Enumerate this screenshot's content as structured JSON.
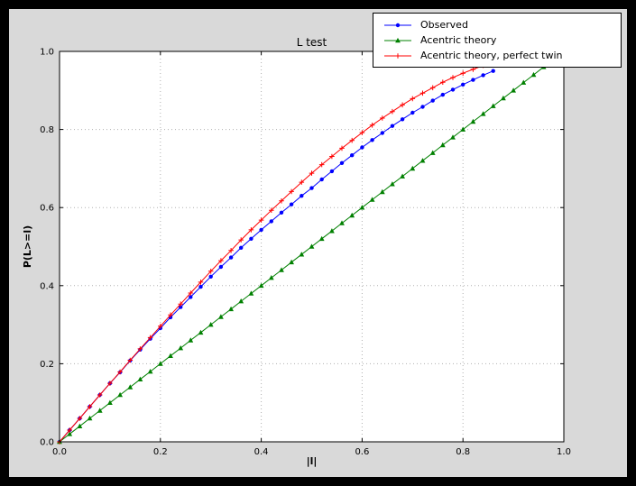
{
  "figure": {
    "title": "L test",
    "xlabel": "|l|",
    "ylabel": "P(L>=l)",
    "bg_outer": "#000000",
    "bg_figure": "#d9d9d9",
    "bg_axes": "#ffffff",
    "grid_color": "#b0b0b0"
  },
  "axes": {
    "xticks": [
      "0.0",
      "0.2",
      "0.4",
      "0.6",
      "0.8",
      "1.0"
    ],
    "yticks": [
      "0.0",
      "0.2",
      "0.4",
      "0.6",
      "0.8",
      "1.0"
    ]
  },
  "chart_data": {
    "type": "line",
    "title": "L test",
    "xlabel": "|l|",
    "ylabel": "P(L>=l)",
    "xlim": [
      0,
      1
    ],
    "ylim": [
      0,
      1
    ],
    "grid": true,
    "grid_style": "dotted",
    "legend_position": "upper right",
    "series": [
      {
        "name": "Observed",
        "color": "#0000ff",
        "marker": "circle",
        "x": [
          0,
          0.02,
          0.04,
          0.06,
          0.08,
          0.1,
          0.12,
          0.14,
          0.16,
          0.18,
          0.2,
          0.22,
          0.24,
          0.26,
          0.28,
          0.3,
          0.32,
          0.34,
          0.36,
          0.38,
          0.4,
          0.42,
          0.44,
          0.46,
          0.48,
          0.5,
          0.52,
          0.54,
          0.56,
          0.58,
          0.6,
          0.62,
          0.64,
          0.66,
          0.68,
          0.7,
          0.72,
          0.74,
          0.76,
          0.78,
          0.8,
          0.82,
          0.84,
          0.86
        ],
        "y": [
          0,
          0.03,
          0.06,
          0.09,
          0.12,
          0.15,
          0.178,
          0.208,
          0.236,
          0.264,
          0.291,
          0.319,
          0.345,
          0.371,
          0.397,
          0.423,
          0.448,
          0.472,
          0.497,
          0.52,
          0.543,
          0.565,
          0.587,
          0.608,
          0.63,
          0.65,
          0.672,
          0.693,
          0.714,
          0.734,
          0.754,
          0.773,
          0.791,
          0.809,
          0.826,
          0.843,
          0.858,
          0.874,
          0.889,
          0.902,
          0.915,
          0.927,
          0.939,
          0.95
        ]
      },
      {
        "name": "Acentric theory",
        "color": "#008000",
        "marker": "triangle_up",
        "x": [
          0,
          0.02,
          0.04,
          0.06,
          0.08,
          0.1,
          0.12,
          0.14,
          0.16,
          0.18,
          0.2,
          0.22,
          0.24,
          0.26,
          0.28,
          0.3,
          0.32,
          0.34,
          0.36,
          0.38,
          0.4,
          0.42,
          0.44,
          0.46,
          0.48,
          0.5,
          0.52,
          0.54,
          0.56,
          0.58,
          0.6,
          0.62,
          0.64,
          0.66,
          0.68,
          0.7,
          0.72,
          0.74,
          0.76,
          0.78,
          0.8,
          0.82,
          0.84,
          0.86,
          0.88,
          0.9,
          0.92,
          0.94,
          0.96
        ],
        "y": [
          0,
          0.02,
          0.04,
          0.06,
          0.08,
          0.1,
          0.12,
          0.14,
          0.16,
          0.18,
          0.2,
          0.22,
          0.24,
          0.26,
          0.28,
          0.3,
          0.32,
          0.34,
          0.36,
          0.38,
          0.4,
          0.42,
          0.44,
          0.46,
          0.48,
          0.5,
          0.52,
          0.54,
          0.56,
          0.58,
          0.6,
          0.62,
          0.64,
          0.66,
          0.68,
          0.7,
          0.72,
          0.74,
          0.76,
          0.78,
          0.8,
          0.82,
          0.84,
          0.86,
          0.88,
          0.9,
          0.92,
          0.94,
          0.96
        ]
      },
      {
        "name": "Acentric theory, perfect twin",
        "color": "#ff0000",
        "marker": "plus",
        "x": [
          0,
          0.02,
          0.04,
          0.06,
          0.08,
          0.1,
          0.12,
          0.14,
          0.16,
          0.18,
          0.2,
          0.22,
          0.24,
          0.26,
          0.28,
          0.3,
          0.32,
          0.34,
          0.36,
          0.38,
          0.4,
          0.42,
          0.44,
          0.46,
          0.48,
          0.5,
          0.52,
          0.54,
          0.56,
          0.58,
          0.6,
          0.62,
          0.64,
          0.66,
          0.68,
          0.7,
          0.72,
          0.74,
          0.76,
          0.78,
          0.8,
          0.82,
          0.84,
          0.86
        ],
        "y": [
          0,
          0.03,
          0.06,
          0.09,
          0.12,
          0.15,
          0.179,
          0.209,
          0.238,
          0.267,
          0.296,
          0.325,
          0.353,
          0.381,
          0.409,
          0.437,
          0.464,
          0.49,
          0.517,
          0.543,
          0.568,
          0.593,
          0.617,
          0.641,
          0.665,
          0.688,
          0.71,
          0.731,
          0.752,
          0.772,
          0.792,
          0.811,
          0.829,
          0.846,
          0.863,
          0.879,
          0.893,
          0.907,
          0.921,
          0.933,
          0.944,
          0.954,
          0.964,
          0.972
        ]
      }
    ]
  }
}
